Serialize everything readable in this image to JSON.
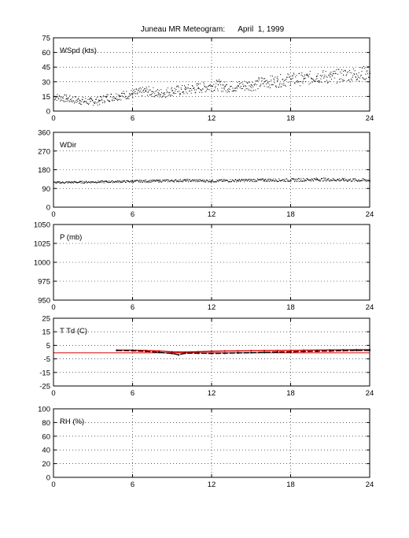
{
  "title": "Juneau MR Meteogram:      April  1, 1999",
  "x_ticks": [
    0,
    6,
    12,
    18,
    24
  ],
  "x_range": [
    0,
    24
  ],
  "chart_data": [
    {
      "type": "scatter",
      "label": "WSpd (kts)",
      "xlim": [
        0,
        24
      ],
      "ylim": [
        0,
        75
      ],
      "yticks": [
        0,
        15,
        30,
        45,
        60,
        75
      ],
      "grid": true,
      "color": "#000000",
      "series": [
        {
          "x": [
            0,
            1,
            2,
            2.8,
            3.5,
            4,
            5,
            6,
            7,
            7.5,
            8,
            9,
            10,
            11,
            12,
            12.5,
            13,
            14,
            15,
            16,
            17,
            18,
            19,
            20,
            21,
            22,
            23,
            24
          ],
          "y": [
            15,
            13,
            11,
            10,
            11,
            14,
            16,
            18,
            21,
            20,
            18,
            21,
            22,
            24,
            26,
            27,
            25,
            26,
            27,
            30,
            31,
            33,
            33,
            36,
            35,
            37,
            38,
            40
          ]
        }
      ]
    },
    {
      "type": "scatter",
      "label": "WDir",
      "xlim": [
        0,
        24
      ],
      "ylim": [
        0,
        360
      ],
      "yticks": [
        0,
        90,
        180,
        270,
        360
      ],
      "grid": true,
      "color": "#000000",
      "series": [
        {
          "x": [
            0,
            2,
            4,
            6,
            8,
            10,
            12,
            14,
            16,
            18,
            20,
            22,
            24
          ],
          "y": [
            120,
            122,
            124,
            126,
            128,
            130,
            128,
            130,
            132,
            132,
            135,
            133,
            131
          ]
        }
      ]
    },
    {
      "type": "line",
      "label": "P (mb)",
      "xlim": [
        0,
        24
      ],
      "ylim": [
        950,
        1050
      ],
      "yticks": [
        950,
        975,
        1000,
        1025,
        1050
      ],
      "grid": true,
      "series": []
    },
    {
      "type": "line",
      "label": "T Td (C)",
      "xlim": [
        0,
        24
      ],
      "ylim": [
        -25,
        25
      ],
      "yticks": [
        -25,
        -15,
        -5,
        5,
        15,
        25
      ],
      "grid": true,
      "hline": -0.5,
      "hline_color": "#d40000",
      "series": [
        {
          "color": "#d40000",
          "x": [
            4.8,
            6,
            7,
            8,
            9,
            10,
            11,
            12,
            13,
            14,
            15,
            16,
            17,
            18,
            19,
            20,
            21,
            22,
            23,
            24
          ],
          "y": [
            1.5,
            1.5,
            1.2,
            0.8,
            0.2,
            0.0,
            0.3,
            0.6,
            0.8,
            0.9,
            1.0,
            1.1,
            1.2,
            1.3,
            1.4,
            1.5,
            1.6,
            1.7,
            1.8,
            1.8
          ]
        },
        {
          "color": "#000000",
          "x": [
            4.8,
            6,
            7,
            8,
            9,
            9.5,
            10,
            11,
            12,
            13,
            14,
            15,
            16,
            17,
            18,
            19,
            20,
            21,
            22,
            23,
            24
          ],
          "y": [
            1.2,
            1.0,
            0.5,
            -0.2,
            -1.0,
            -2.0,
            -0.8,
            -0.8,
            -1.0,
            -0.8,
            -0.6,
            -0.4,
            -0.2,
            0.0,
            0.2,
            0.4,
            0.6,
            0.8,
            1.0,
            1.2,
            1.2
          ]
        }
      ]
    },
    {
      "type": "line",
      "label": "RH (%)",
      "xlim": [
        0,
        24
      ],
      "ylim": [
        0,
        100
      ],
      "yticks": [
        0,
        20,
        40,
        60,
        80,
        100
      ],
      "grid": true,
      "series": []
    }
  ]
}
